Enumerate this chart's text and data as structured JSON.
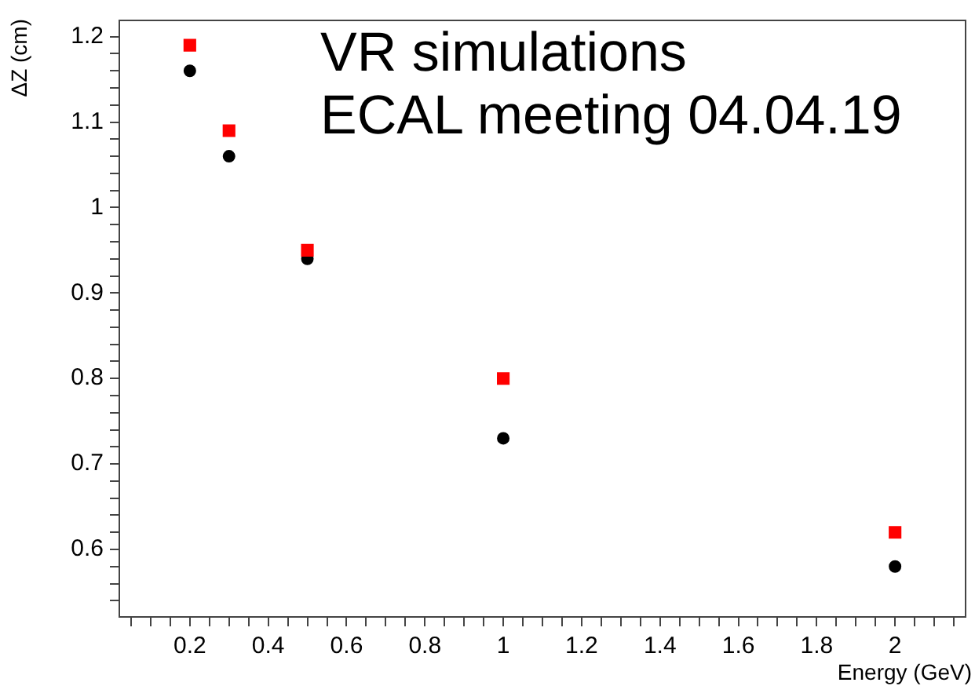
{
  "chart_data": {
    "type": "scatter",
    "xlabel": "Energy (GeV)",
    "ylabel": "ΔZ (cm)",
    "annotations": [
      "VR simulations",
      "ECAL meeting 04.04.19"
    ],
    "x": [
      0.2,
      0.3,
      0.5,
      1,
      2
    ],
    "series": [
      {
        "color": "#ff0000",
        "marker": "square",
        "values": [
          1.19,
          1.09,
          0.95,
          0.8,
          0.62
        ]
      },
      {
        "color": "#000000",
        "marker": "circle",
        "values": [
          1.16,
          1.06,
          0.94,
          0.73,
          0.58
        ]
      }
    ],
    "xlim": [
      0.02,
      2.18
    ],
    "ylim": [
      0.521,
      1.219
    ],
    "xticks": [
      {
        "value": 0.05,
        "label": null
      },
      {
        "value": 0.1,
        "label": null
      },
      {
        "value": 0.15,
        "label": null
      },
      0.2,
      {
        "value": 0.25,
        "label": null
      },
      {
        "value": 0.3,
        "label": null
      },
      {
        "value": 0.35,
        "label": null
      },
      0.4,
      {
        "value": 0.45,
        "label": null
      },
      {
        "value": 0.5,
        "label": null
      },
      {
        "value": 0.55,
        "label": null
      },
      0.6,
      {
        "value": 0.65,
        "label": null
      },
      {
        "value": 0.7,
        "label": null
      },
      {
        "value": 0.75,
        "label": null
      },
      0.8,
      {
        "value": 0.85,
        "label": null
      },
      {
        "value": 0.9,
        "label": null
      },
      {
        "value": 0.95,
        "label": null
      },
      1,
      {
        "value": 1.05,
        "label": null
      },
      {
        "value": 1.1,
        "label": null
      },
      {
        "value": 1.15,
        "label": null
      },
      1.2,
      {
        "value": 1.25,
        "label": null
      },
      {
        "value": 1.3,
        "label": null
      },
      {
        "value": 1.35,
        "label": null
      },
      1.4,
      {
        "value": 1.45,
        "label": null
      },
      {
        "value": 1.5,
        "label": null
      },
      {
        "value": 1.55,
        "label": null
      },
      1.6,
      {
        "value": 1.65,
        "label": null
      },
      {
        "value": 1.7,
        "label": null
      },
      {
        "value": 1.75,
        "label": null
      },
      1.8,
      {
        "value": 1.85,
        "label": null
      },
      {
        "value": 1.9,
        "label": null
      },
      {
        "value": 1.95,
        "label": null
      },
      2,
      {
        "value": 2.05,
        "label": null
      },
      {
        "value": 2.1,
        "label": null
      },
      {
        "value": 2.15,
        "label": null
      }
    ],
    "yticks": [
      {
        "value": 0.54,
        "label": null
      },
      {
        "value": 0.56,
        "label": null
      },
      {
        "value": 0.58,
        "label": null
      },
      0.6,
      {
        "value": 0.62,
        "label": null
      },
      {
        "value": 0.64,
        "label": null
      },
      {
        "value": 0.66,
        "label": null
      },
      {
        "value": 0.68,
        "label": null
      },
      0.7,
      {
        "value": 0.72,
        "label": null
      },
      {
        "value": 0.74,
        "label": null
      },
      {
        "value": 0.76,
        "label": null
      },
      {
        "value": 0.78,
        "label": null
      },
      0.8,
      {
        "value": 0.82,
        "label": null
      },
      {
        "value": 0.84,
        "label": null
      },
      {
        "value": 0.86,
        "label": null
      },
      {
        "value": 0.88,
        "label": null
      },
      0.9,
      {
        "value": 0.92,
        "label": null
      },
      {
        "value": 0.94,
        "label": null
      },
      {
        "value": 0.96,
        "label": null
      },
      {
        "value": 0.98,
        "label": null
      },
      1,
      {
        "value": 1.02,
        "label": null
      },
      {
        "value": 1.04,
        "label": null
      },
      {
        "value": 1.06,
        "label": null
      },
      {
        "value": 1.08,
        "label": null
      },
      1.1,
      {
        "value": 1.12,
        "label": null
      },
      {
        "value": 1.14,
        "label": null
      },
      {
        "value": 1.16,
        "label": null
      },
      {
        "value": 1.18,
        "label": null
      },
      1.2
    ],
    "grid": false,
    "legend": false
  }
}
